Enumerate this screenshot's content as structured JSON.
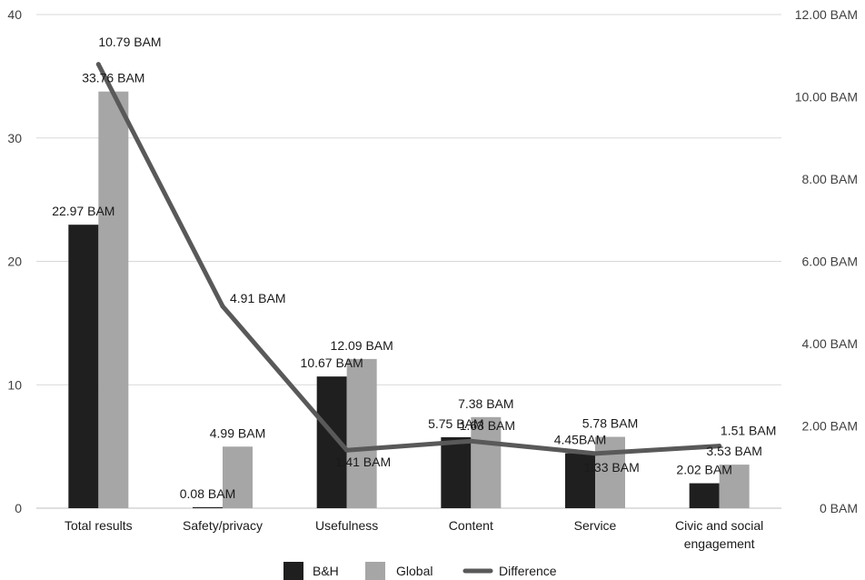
{
  "chart_data": {
    "type": "bar",
    "categories": [
      [
        "Total results"
      ],
      [
        "Safety/privacy"
      ],
      [
        "Usefulness"
      ],
      [
        "Content"
      ],
      [
        "Service"
      ],
      [
        "Civic and social",
        "engagement"
      ]
    ],
    "series": [
      {
        "name": "B&H",
        "type": "bar",
        "axis": "left",
        "color": "#1f1f1f",
        "values": [
          22.97,
          0.08,
          10.67,
          5.75,
          4.45,
          2.02
        ],
        "labels": [
          "22.97 BAM",
          "0.08 BAM",
          "10.67 BAM",
          "5.75 BAM",
          "4.45BAM",
          "2.02 BAM"
        ]
      },
      {
        "name": "Global",
        "type": "bar",
        "axis": "left",
        "color": "#a6a6a6",
        "values": [
          33.76,
          4.99,
          12.09,
          7.38,
          5.78,
          3.53
        ],
        "labels": [
          "33.76 BAM",
          "4.99 BAM",
          "12.09 BAM",
          "7.38 BAM",
          "5.78 BAM",
          "3.53 BAM"
        ]
      },
      {
        "name": "Difference",
        "type": "line",
        "axis": "right",
        "color": "#595959",
        "values": [
          10.79,
          4.91,
          1.41,
          1.63,
          1.33,
          1.51
        ],
        "labels": [
          "10.79 BAM",
          "4.91 BAM",
          "1.41 BAM",
          "1.63 BAM",
          "1.33 BAM",
          "1.51 BAM"
        ]
      }
    ],
    "y_left": {
      "ylim": [
        0,
        40
      ],
      "ticks": [
        0,
        10,
        20,
        30,
        40
      ],
      "tick_labels": [
        "0",
        "10",
        "20",
        "30",
        "40"
      ]
    },
    "y_right": {
      "ylim": [
        0,
        12
      ],
      "ticks": [
        0,
        2,
        4,
        6,
        8,
        10,
        12
      ],
      "tick_labels": [
        "0 BAM",
        "2.00 BAM",
        "4.00 BAM",
        "6.00 BAM",
        "8.00 BAM",
        "10.00 BAM",
        "12.00 BAM"
      ]
    },
    "grid": true,
    "legend_position": "bottom-center"
  }
}
